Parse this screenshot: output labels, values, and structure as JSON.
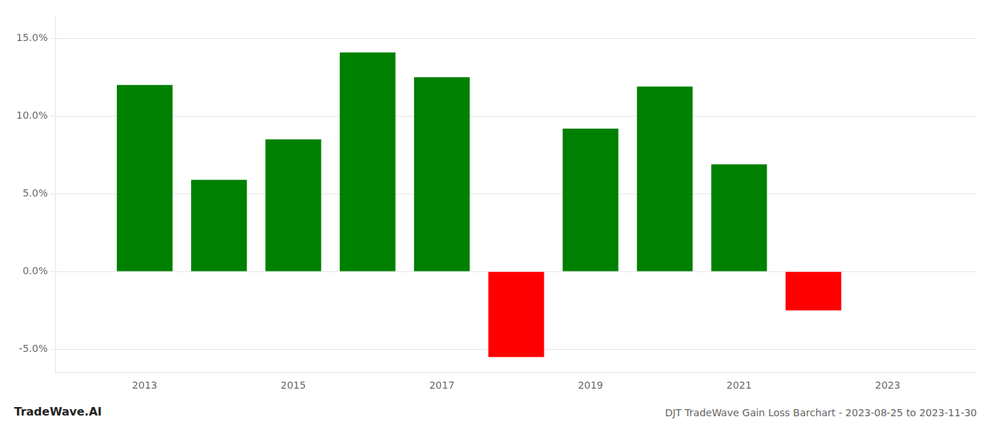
{
  "chart_data": {
    "type": "bar",
    "x": [
      2013,
      2014,
      2015,
      2016,
      2017,
      2018,
      2019,
      2020,
      2021,
      2022
    ],
    "values": [
      12.0,
      5.9,
      8.5,
      14.1,
      12.5,
      -5.5,
      9.2,
      11.9,
      6.9,
      -2.5
    ],
    "colors": [
      "#008000",
      "#008000",
      "#008000",
      "#008000",
      "#008000",
      "#ff0000",
      "#008000",
      "#008000",
      "#008000",
      "#ff0000"
    ],
    "xlim": [
      2011.8,
      2024.2
    ],
    "xticks": [
      2013,
      2015,
      2017,
      2019,
      2021,
      2023
    ],
    "ylim": [
      -6.5,
      16.5
    ],
    "yticks": [
      {
        "value": -5.0,
        "label": "-5.0%"
      },
      {
        "value": 0.0,
        "label": "0.0%"
      },
      {
        "value": 5.0,
        "label": "5.0%"
      },
      {
        "value": 10.0,
        "label": "10.0%"
      },
      {
        "value": 15.0,
        "label": "15.0%"
      }
    ],
    "grid": "y",
    "annotations": [
      "TradeWave.AI",
      "DJT TradeWave Gain Loss Barchart - 2023-08-25 to 2023-11-30"
    ]
  }
}
